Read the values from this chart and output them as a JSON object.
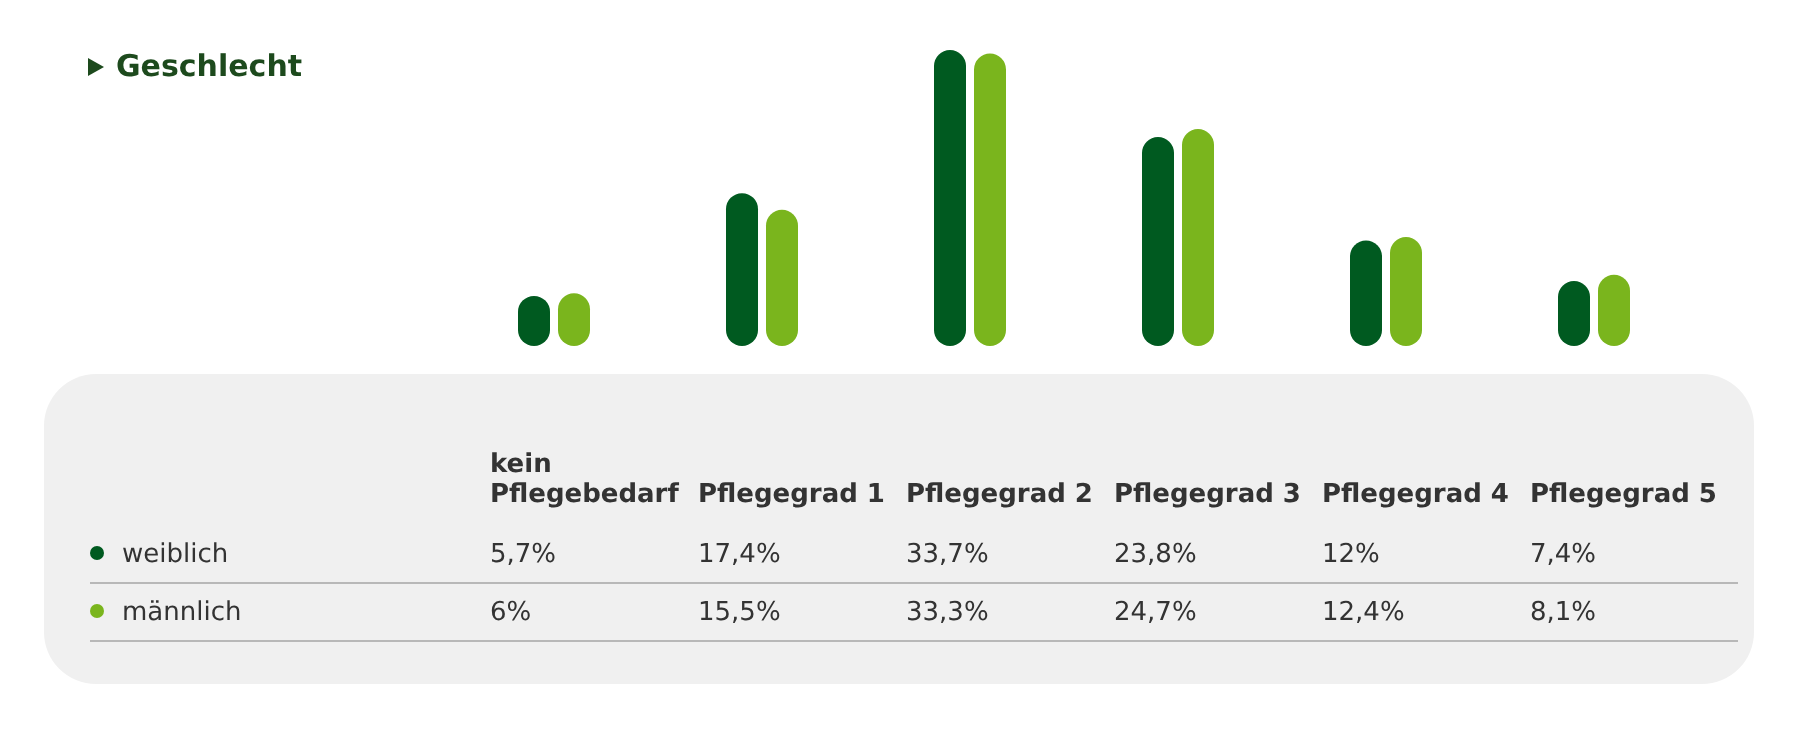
{
  "chart_data": {
    "type": "bar",
    "title": "Geschlecht",
    "categories": [
      "kein Pflegebedarf",
      "Pflegegrad 1",
      "Pflegegrad 2",
      "Pflegegrad 3",
      "Pflegegrad 4",
      "Pflegegrad 5"
    ],
    "series": [
      {
        "name": "weiblich",
        "color": "#005a20",
        "values": [
          5.7,
          17.4,
          33.7,
          23.8,
          12,
          7.4
        ],
        "value_labels": [
          "5,7%",
          "17,4%",
          "33,7%",
          "23,8%",
          "12%",
          "7,4%"
        ]
      },
      {
        "name": "männlich",
        "color": "#7ab51d",
        "values": [
          6,
          15.5,
          33.3,
          24.7,
          12.4,
          8.1
        ],
        "value_labels": [
          "6%",
          "15,5%",
          "33,3%",
          "24,7%",
          "12,4%",
          "8,1%"
        ]
      }
    ],
    "legend": "bottom left"
  }
}
